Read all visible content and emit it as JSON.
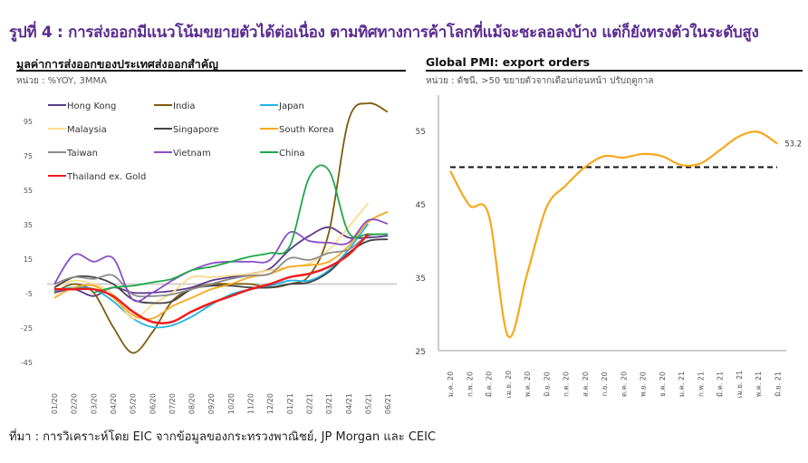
{
  "title": "รูปที่ 4 : การส่งออกมีแนวโน้มขยายตัวได้ต่อเนื่อง ตามทิศทางการค้าโลกที่แม้จะชะลอลงบ้าง แต่ก็ยังทรงตัวในระดับสูง",
  "footer": "ที่มา : การวิเคราะห์โดย EIC จากข้อมูลของกระทรวงพาณิชย์, JP Morgan และ CEIC",
  "chart_data": [
    {
      "type": "line",
      "title": "มูลค่าการส่งออกของประเทศส่งออกสำคัญ",
      "unit": "หน่วย : %YOY, 3MMA",
      "x": [
        "01/20",
        "02/20",
        "03/20",
        "04/20",
        "05/20",
        "06/20",
        "07/20",
        "08/20",
        "09/20",
        "10/20",
        "11/20",
        "12/20",
        "01/21",
        "02/21",
        "03/21",
        "04/21",
        "05/21",
        "06/21"
      ],
      "ylim": [
        -45,
        105
      ],
      "yticks": [
        -45,
        -25,
        -5,
        15,
        35,
        55,
        75,
        95
      ],
      "legend": "top-left",
      "series": [
        {
          "name": "Hong Kong",
          "color": "#5b3a8c",
          "values": [
            -5,
            -3,
            -7,
            -2,
            -5,
            -5,
            -4,
            -2,
            2,
            4,
            6,
            9,
            20,
            28,
            33,
            27,
            27,
            28
          ]
        },
        {
          "name": "India",
          "color": "#7f5a0f",
          "values": [
            -5,
            0,
            -5,
            -25,
            -40,
            -28,
            -10,
            -3,
            0,
            0,
            0,
            -2,
            0,
            5,
            30,
            95,
            105,
            100
          ]
        },
        {
          "name": "Japan",
          "color": "#1fb3e8",
          "values": [
            -4,
            -2,
            -3,
            -10,
            -20,
            -25,
            -24,
            -19,
            -12,
            -6,
            -3,
            -1,
            2,
            2,
            8,
            20,
            35,
            null
          ]
        },
        {
          "name": "Malaysia",
          "color": "#fcdc8c",
          "values": [
            -2,
            2,
            0,
            -6,
            -20,
            -12,
            -5,
            4,
            4,
            5,
            6,
            8,
            10,
            12,
            20,
            33,
            47,
            null
          ]
        },
        {
          "name": "Singapore",
          "color": "#444444",
          "values": [
            -2,
            4,
            4,
            0,
            -9,
            -11,
            -10,
            -3,
            -1,
            -1,
            -2,
            -2,
            0,
            1,
            7,
            18,
            25,
            26
          ]
        },
        {
          "name": "South Korea",
          "color": "#f7a81b",
          "values": [
            -8,
            -2,
            -1,
            -8,
            -18,
            -20,
            -13,
            -8,
            -3,
            0,
            4,
            6,
            10,
            11,
            13,
            22,
            36,
            42
          ]
        },
        {
          "name": "Taiwan",
          "color": "#8c8c8c",
          "values": [
            0,
            4,
            3,
            5,
            -6,
            -7,
            -6,
            -3,
            0,
            3,
            5,
            6,
            15,
            14,
            18,
            20,
            28,
            29
          ]
        },
        {
          "name": "Vietnam",
          "color": "#8a4fc7",
          "values": [
            0,
            17,
            13,
            15,
            -9,
            -5,
            2,
            8,
            12,
            13,
            13,
            14,
            30,
            25,
            24,
            24,
            37,
            35
          ]
        },
        {
          "name": "China",
          "color": "#1fa94a",
          "values": [
            null,
            null,
            -5,
            -2,
            -1,
            1,
            3,
            8,
            10,
            13,
            16,
            18,
            22,
            62,
            66,
            30,
            29,
            29
          ]
        },
        {
          "name": "Thailand ex. Gold",
          "color": "#ee1c1c",
          "values": [
            -3,
            -3,
            -3,
            -7,
            -16,
            -22,
            -22,
            -16,
            -11,
            -7,
            -3,
            0,
            4,
            6,
            10,
            17,
            29,
            null
          ]
        }
      ]
    },
    {
      "type": "line",
      "title": "Global PMI: export orders",
      "unit": "หน่วย : ดัชนี, >50 ขยายตัวจากเดือนก่อนหน้า ปรับฤดูกาล",
      "x": [
        "ม.ค. 20",
        "ก.พ. 20",
        "มี.ค. 20",
        "เม.ย. 20",
        "พ.ค. 20",
        "มิ.ย. 20",
        "ก.ค. 20",
        "ส.ค. 20",
        "ก.ย. 20",
        "ต.ค. 20",
        "พ.ย. 20",
        "ธ.ค. 20",
        "ม.ค. 21",
        "ก.พ. 21",
        "มี.ค. 21",
        "เม.ย. 21",
        "พ.ค. 21",
        "มิ.ย. 21"
      ],
      "ylim": [
        25,
        57
      ],
      "yticks": [
        25,
        35,
        45,
        55
      ],
      "reference_line": 50,
      "last_label": "53.2",
      "series": [
        {
          "name": "Global PMI export orders",
          "color": "#f7a81b",
          "values": [
            49.5,
            44.8,
            43.5,
            27,
            35.5,
            44.5,
            47.5,
            50,
            51.5,
            51.3,
            51.8,
            51.5,
            50.3,
            50.5,
            52.3,
            54.2,
            54.8,
            53.2
          ]
        }
      ]
    }
  ]
}
